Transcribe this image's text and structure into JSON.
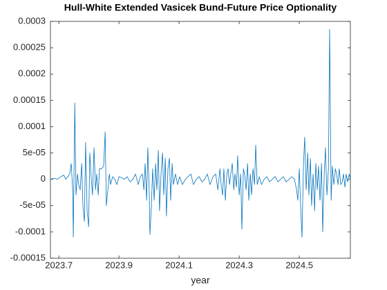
{
  "chart_data": {
    "type": "line",
    "title": "Hull-White Extended Vasicek Bund-Future Price Optionality",
    "xlabel": "year",
    "color": "#0072bd",
    "xlim": [
      2023.672,
      2024.67
    ],
    "xticks": [
      2023.7,
      2023.9,
      2024.1,
      2024.3,
      2024.5
    ],
    "ylim": [
      -0.00015,
      0.0003
    ],
    "yticks": [
      -0.00015,
      -0.0001,
      {
        "value": -5e-05,
        "label": "-5e-05"
      },
      0,
      {
        "value": 5e-05,
        "label": "5e-05"
      },
      0.0001,
      0.00015,
      0.0002,
      0.00025,
      0.0003
    ],
    "x": [
      2023.672,
      2023.684,
      2023.695,
      2023.707,
      2023.716,
      2023.723,
      2023.73,
      2023.736,
      2023.741,
      2023.746,
      2023.748,
      2023.753,
      2023.757,
      2023.762,
      2023.766,
      2023.771,
      2023.776,
      2023.78,
      2023.785,
      2023.789,
      2023.794,
      2023.799,
      2023.803,
      2023.808,
      2023.812,
      2023.817,
      2023.822,
      2023.826,
      2023.831,
      2023.835,
      2023.842,
      2023.849,
      2023.854,
      2023.858,
      2023.863,
      2023.868,
      2023.872,
      2023.879,
      2023.886,
      2023.893,
      2023.9,
      2023.909,
      2023.918,
      2023.927,
      2023.937,
      2023.946,
      2023.955,
      2023.964,
      2023.971,
      2023.978,
      2023.983,
      2023.987,
      2023.992,
      2023.996,
      2024.001,
      2024.003,
      2024.008,
      2024.012,
      2024.017,
      2024.022,
      2024.026,
      2024.031,
      2024.035,
      2024.04,
      2024.045,
      2024.049,
      2024.054,
      2024.058,
      2024.063,
      2024.068,
      2024.072,
      2024.077,
      2024.081,
      2024.088,
      2024.095,
      2024.102,
      2024.111,
      2024.121,
      2024.13,
      2024.139,
      2024.148,
      2024.157,
      2024.167,
      2024.176,
      2024.185,
      2024.194,
      2024.203,
      2024.213,
      2024.222,
      2024.229,
      2024.236,
      2024.24,
      2024.245,
      2024.249,
      2024.254,
      2024.259,
      2024.263,
      2024.268,
      2024.272,
      2024.277,
      2024.282,
      2024.286,
      2024.291,
      2024.295,
      2024.3,
      2024.305,
      2024.309,
      2024.314,
      2024.318,
      2024.323,
      2024.328,
      2024.332,
      2024.337,
      2024.341,
      2024.346,
      2024.351,
      2024.355,
      2024.36,
      2024.367,
      2024.374,
      2024.383,
      2024.392,
      2024.401,
      2024.41,
      2024.42,
      2024.429,
      2024.438,
      2024.447,
      2024.456,
      2024.466,
      2024.475,
      2024.484,
      2024.491,
      2024.495,
      2024.5,
      2024.505,
      2024.509,
      2024.514,
      2024.518,
      2024.523,
      2024.528,
      2024.532,
      2024.537,
      2024.541,
      2024.546,
      2024.551,
      2024.555,
      2024.56,
      2024.564,
      2024.569,
      2024.574,
      2024.578,
      2024.583,
      2024.587,
      2024.592,
      2024.597,
      2024.601,
      2024.606,
      2024.61,
      2024.615,
      2024.62,
      2024.624,
      2024.629,
      2024.633,
      2024.638,
      2024.643,
      2024.647,
      2024.652,
      2024.656,
      2024.661,
      2024.666,
      2024.67
    ],
    "values": [
      0,
      2e-06,
      0,
      5e-06,
      8e-06,
      0,
      5e-06,
      1e-05,
      3e-05,
      -2e-05,
      -0.00011,
      0.000145,
      -3e-05,
      1e-05,
      -1e-05,
      -2e-05,
      3e-05,
      -5e-05,
      -8e-05,
      7e-05,
      -6e-05,
      -9e-05,
      5e-05,
      0,
      -3e-05,
      6e-05,
      -2e-05,
      1e-05,
      -3e-05,
      2e-05,
      2e-05,
      2.5e-05,
      9e-05,
      -5e-05,
      -2e-05,
      1e-05,
      -1e-05,
      5e-06,
      0,
      -1e-05,
      5e-06,
      3e-06,
      0,
      5e-06,
      -5e-06,
      0,
      1e-05,
      -1e-05,
      5e-06,
      1e-05,
      -2e-05,
      3e-05,
      -4e-05,
      6e-05,
      -3e-05,
      -0.000105,
      -5e-05,
      2e-05,
      -4e-05,
      3e-05,
      -2e-05,
      5.5e-05,
      -6e-05,
      1e-05,
      5e-05,
      -3e-05,
      4e-05,
      -7e-05,
      2e-05,
      4e-05,
      -4e-05,
      3e-05,
      -1e-05,
      1e-05,
      -1e-05,
      5e-06,
      -1e-05,
      0,
      5e-06,
      1e-05,
      -1e-05,
      0,
      5e-06,
      -5e-06,
      0,
      1e-05,
      -1e-05,
      5e-06,
      1e-05,
      -2e-05,
      2e-05,
      -1e-05,
      -3e-05,
      2e-05,
      -4e-05,
      1e-05,
      2e-05,
      -1e-05,
      1e-05,
      3e-05,
      -2e-05,
      1e-05,
      -1.5e-05,
      4.5e-05,
      -3e-05,
      1e-05,
      -9.5e-05,
      2e-05,
      1e-05,
      -2e-05,
      3e-05,
      -4e-05,
      1e-05,
      -3e-05,
      2e-05,
      -1e-05,
      6.5e-05,
      -1e-05,
      5e-06,
      -1e-05,
      0,
      5e-06,
      -5e-06,
      0,
      5e-06,
      -5e-06,
      0,
      5e-06,
      -5e-06,
      0,
      5e-06,
      0,
      -2e-05,
      -4e-05,
      2e-05,
      -6e-05,
      -0.00011,
      3e-05,
      8e-05,
      -2e-05,
      5e-05,
      -3e-05,
      4e-05,
      -5e-05,
      1e-05,
      -6e-05,
      3e-05,
      -2e-05,
      2.5e-05,
      -4e-05,
      3e-05,
      -0.0001,
      1e-05,
      6e-05,
      -3e-05,
      2e-05,
      0.000285,
      -4e-05,
      2.5e-05,
      -1e-05,
      2e-05,
      1e-05,
      -1e-05,
      2e-05,
      -1e-05,
      -5e-06,
      1e-05,
      -1.5e-05,
      1e-05,
      -5e-06,
      1e-05,
      0
    ]
  }
}
